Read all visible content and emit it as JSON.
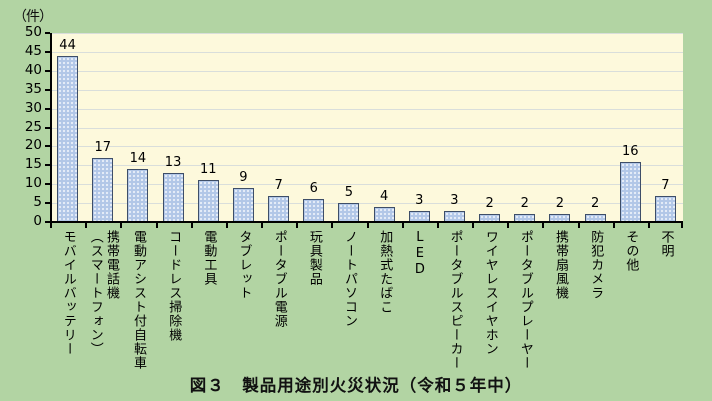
{
  "unit_label": "（件）",
  "title": "図３　製品用途別火災状況（令和５年中）",
  "chart_data": {
    "type": "bar",
    "categories": [
      "モバイルバッテリー",
      "携帯電話機\n（スマートフォン）",
      "電動アシスト付自転車",
      "コードレス掃除機",
      "電動工具",
      "タブレット",
      "ポータブル電源",
      "玩具製品",
      "ノートパソコン",
      "加熱式たばこ",
      "LED",
      "ポータブルスピーカー",
      "ワイヤレスイヤホン",
      "ポータブルプレーヤー",
      "携帯扇風機",
      "防犯カメラ",
      "その他",
      "不明"
    ],
    "values": [
      44,
      17,
      14,
      13,
      11,
      9,
      7,
      6,
      5,
      4,
      3,
      3,
      2,
      2,
      2,
      2,
      16,
      7
    ],
    "title": "図３　製品用途別火災状況（令和５年中）",
    "xlabel": "",
    "ylabel": "（件）",
    "ylim": [
      0,
      50
    ],
    "ytick_step": 5,
    "grid": true,
    "legend": "none",
    "colors": {
      "page_background": "#b2d4a3",
      "plot_background": "#fdf9dc",
      "gridline": "#d9dedb",
      "bar_fill": "#b2c7e7",
      "bar_dot": "#e6edf8",
      "bar_border": "#3e4e68",
      "axis": "#000000",
      "text": "#000000"
    }
  }
}
